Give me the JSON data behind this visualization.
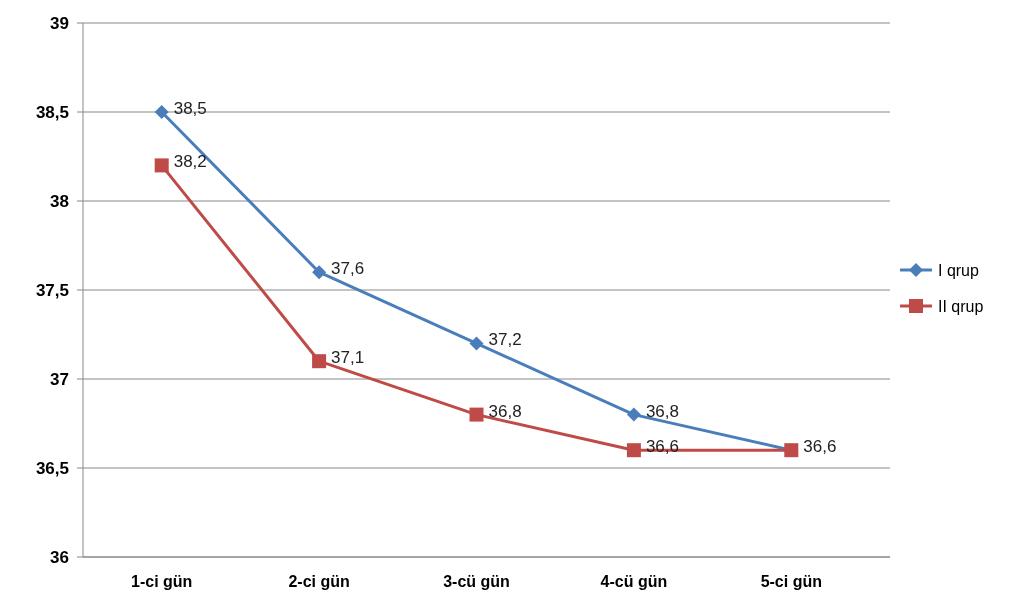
{
  "chart_data": {
    "type": "line",
    "categories": [
      "1-ci gün",
      "2-ci gün",
      "3-cü gün",
      "4-cü gün",
      "5-ci gün"
    ],
    "series": [
      {
        "name": "I qrup",
        "color": "#4a7ebb",
        "marker": "diamond",
        "values": [
          38.5,
          37.6,
          37.2,
          36.8,
          36.6
        ],
        "value_labels": [
          "38,5",
          "37,6",
          "37,2",
          "36,8",
          null
        ]
      },
      {
        "name": "II qrup",
        "color": "#be4b48",
        "marker": "square",
        "values": [
          38.2,
          37.1,
          36.8,
          36.6,
          36.6
        ],
        "value_labels": [
          "38,2",
          "37,1",
          "36,8",
          "36,6",
          "36,6"
        ]
      }
    ],
    "ylim": [
      36,
      39
    ],
    "yticks": [
      {
        "value": 36,
        "label": "36"
      },
      {
        "value": 36.5,
        "label": "36,5"
      },
      {
        "value": 37,
        "label": "37"
      },
      {
        "value": 37.5,
        "label": "37,5"
      },
      {
        "value": 38,
        "label": "38"
      },
      {
        "value": 38.5,
        "label": "38,5"
      },
      {
        "value": 39,
        "label": "39"
      }
    ],
    "grid": "y",
    "legend": "right",
    "line_style": "solid"
  }
}
